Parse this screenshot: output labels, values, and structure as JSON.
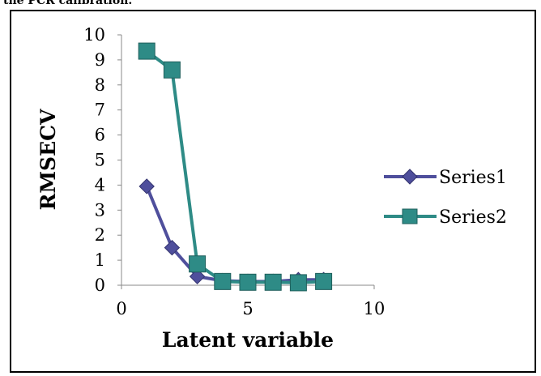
{
  "caption": "the PCR calibration.",
  "chart_data": {
    "type": "line",
    "xlabel": "Latent variable",
    "ylabel": "RMSECV",
    "xlim": [
      0,
      10
    ],
    "ylim": [
      0,
      10
    ],
    "x_ticks": [
      "0",
      "5",
      "10"
    ],
    "y_ticks": [
      "0",
      "1",
      "2",
      "3",
      "4",
      "5",
      "6",
      "7",
      "8",
      "9",
      "10"
    ],
    "grid": false,
    "legend_position": "right",
    "series": [
      {
        "name": "Series1",
        "color": "#4f4f9c",
        "marker": "diamond",
        "x": [
          1,
          2,
          3,
          4,
          5,
          6,
          7,
          8
        ],
        "values": [
          3.95,
          1.5,
          0.35,
          0.18,
          0.15,
          0.15,
          0.22,
          0.22
        ]
      },
      {
        "name": "Series2",
        "color": "#2e8b86",
        "marker": "square",
        "x": [
          1,
          2,
          3,
          4,
          5,
          6,
          7,
          8
        ],
        "values": [
          9.35,
          8.6,
          0.85,
          0.15,
          0.12,
          0.12,
          0.1,
          0.15
        ]
      }
    ]
  }
}
